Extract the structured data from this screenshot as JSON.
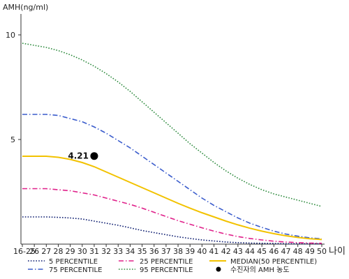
{
  "chart_data": {
    "type": "line",
    "ylabel": "AMH(ng/ml)",
    "xlabel": "나이",
    "ylim": [
      0,
      11
    ],
    "y_ticks": [
      "5",
      "10"
    ],
    "x_categories": [
      "16-25",
      "26",
      "27",
      "28",
      "29",
      "30",
      "31",
      "32",
      "33",
      "34",
      "35",
      "36",
      "37",
      "38",
      "39",
      "40",
      "41",
      "42",
      "43",
      "44",
      "45",
      "46",
      "47",
      "48",
      "49",
      "50"
    ],
    "grid": false,
    "legend_position": "bottom",
    "series": [
      {
        "name": "5 PERCENTILE",
        "color": "#0a1a6e",
        "style": "dotted",
        "values": [
          1.3,
          1.3,
          1.3,
          1.28,
          1.25,
          1.2,
          1.1,
          1.0,
          0.9,
          0.78,
          0.65,
          0.55,
          0.45,
          0.35,
          0.27,
          0.2,
          0.15,
          0.1,
          0.07,
          0.05,
          0.04,
          0.03,
          0.02,
          0.02,
          0.02,
          0.02
        ]
      },
      {
        "name": "75 PERCENTILE",
        "color": "#3a5ccc",
        "style": "dashdot",
        "values": [
          6.2,
          6.2,
          6.2,
          6.15,
          6.0,
          5.85,
          5.6,
          5.3,
          4.95,
          4.6,
          4.2,
          3.8,
          3.4,
          3.0,
          2.6,
          2.2,
          1.85,
          1.55,
          1.25,
          1.0,
          0.8,
          0.62,
          0.48,
          0.38,
          0.3,
          0.25
        ]
      },
      {
        "name": "25 PERCENTILE",
        "color": "#e0208a",
        "style": "dashdot",
        "values": [
          2.65,
          2.65,
          2.65,
          2.6,
          2.55,
          2.45,
          2.35,
          2.2,
          2.05,
          1.9,
          1.72,
          1.52,
          1.32,
          1.12,
          0.95,
          0.78,
          0.62,
          0.48,
          0.36,
          0.27,
          0.2,
          0.14,
          0.1,
          0.07,
          0.05,
          0.04
        ]
      },
      {
        "name": "95 PERCENTILE",
        "color": "#2e8b3e",
        "style": "dotted",
        "values": [
          9.6,
          9.5,
          9.4,
          9.25,
          9.05,
          8.8,
          8.5,
          8.15,
          7.75,
          7.3,
          6.8,
          6.3,
          5.8,
          5.3,
          4.8,
          4.35,
          3.9,
          3.5,
          3.15,
          2.85,
          2.6,
          2.4,
          2.25,
          2.1,
          1.95,
          1.8
        ]
      },
      {
        "name": "MEDIAN(50 PERCENTILE)",
        "color": "#f2c200",
        "style": "solid",
        "values": [
          4.2,
          4.2,
          4.2,
          4.15,
          4.05,
          3.9,
          3.7,
          3.45,
          3.2,
          2.95,
          2.7,
          2.45,
          2.2,
          1.95,
          1.72,
          1.5,
          1.3,
          1.1,
          0.92,
          0.76,
          0.62,
          0.5,
          0.4,
          0.32,
          0.26,
          0.22
        ]
      }
    ],
    "patient_point": {
      "name": "수진자의 AMH 농도",
      "x": "31",
      "y": 4.21,
      "label": "4.21",
      "color": "#000000"
    }
  }
}
